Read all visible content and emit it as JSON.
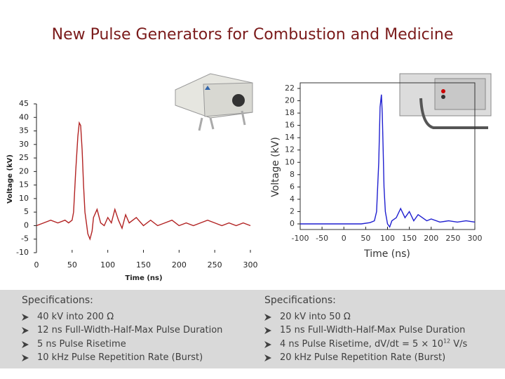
{
  "title": "New Pulse Generators for Combustion and Medicine",
  "chart_data": [
    {
      "type": "line",
      "color": "#b22222",
      "y_label": "Voltage (kV)",
      "x_label": "Time (ns)",
      "xlim": [
        0,
        300
      ],
      "xticks": [
        0,
        50,
        100,
        150,
        200,
        250,
        300
      ],
      "ylim": [
        -10,
        45
      ],
      "yticks": [
        -10,
        -5,
        0,
        5,
        10,
        15,
        20,
        25,
        30,
        35,
        40,
        45
      ],
      "x": [
        0,
        10,
        20,
        30,
        40,
        45,
        50,
        52,
        55,
        58,
        60,
        62,
        64,
        66,
        68,
        70,
        72,
        75,
        78,
        80,
        85,
        90,
        95,
        100,
        105,
        110,
        115,
        120,
        125,
        130,
        140,
        150,
        160,
        170,
        180,
        190,
        200,
        210,
        220,
        230,
        240,
        250,
        260,
        270,
        280,
        290,
        300
      ],
      "values": [
        0,
        1,
        2,
        1,
        2,
        1,
        2,
        5,
        20,
        33,
        38,
        37,
        28,
        15,
        5,
        1,
        -3,
        -5,
        -2,
        3,
        6,
        1,
        0,
        3,
        1,
        6,
        2,
        -1,
        4,
        1,
        3,
        0,
        2,
        0,
        1,
        2,
        0,
        1,
        0,
        1,
        2,
        1,
        0,
        1,
        0,
        1,
        0
      ]
    },
    {
      "type": "line",
      "color": "#1f1fd0",
      "y_label": "Voltage (kV)",
      "x_label": "Time (ns)",
      "xlim": [
        -100,
        300
      ],
      "xticks": [
        -100,
        -50,
        0,
        50,
        100,
        150,
        200,
        250,
        300
      ],
      "ylim": [
        0,
        22
      ],
      "yticks": [
        0,
        2,
        4,
        6,
        8,
        10,
        12,
        14,
        16,
        18,
        20,
        22
      ],
      "x": [
        -100,
        -80,
        -60,
        -40,
        -20,
        0,
        20,
        40,
        60,
        70,
        75,
        80,
        83,
        86,
        88,
        90,
        92,
        95,
        100,
        105,
        110,
        120,
        130,
        140,
        150,
        160,
        170,
        180,
        190,
        200,
        220,
        240,
        260,
        280,
        300
      ],
      "values": [
        0,
        0,
        0,
        0,
        0,
        0,
        0,
        0,
        0.2,
        0.5,
        2,
        10,
        19,
        21,
        18,
        12,
        6,
        2,
        0,
        -0.5,
        0.5,
        1,
        2.5,
        1,
        2,
        0.5,
        1.5,
        1,
        0.5,
        0.8,
        0.3,
        0.5,
        0.3,
        0.5,
        0.3
      ]
    }
  ],
  "specs": [
    {
      "heading": "Specifications:",
      "items": [
        "40 kV into 200 Ω",
        "12 ns Full-Width-Half-Max Pulse Duration",
        "5 ns Pulse Risetime",
        "10 kHz Pulse Repetition Rate (Burst)"
      ]
    },
    {
      "heading": "Specifications:",
      "items": [
        "20 kV into 50 Ω",
        "15 ns Full-Width-Half-Max Pulse Duration",
        {
          "text": "4 ns Pulse Risetime, dV/dt = 5 × 10",
          "sup": "12",
          "after": " V/s"
        },
        "20 kHz Pulse Repetition Rate (Burst)"
      ]
    }
  ]
}
